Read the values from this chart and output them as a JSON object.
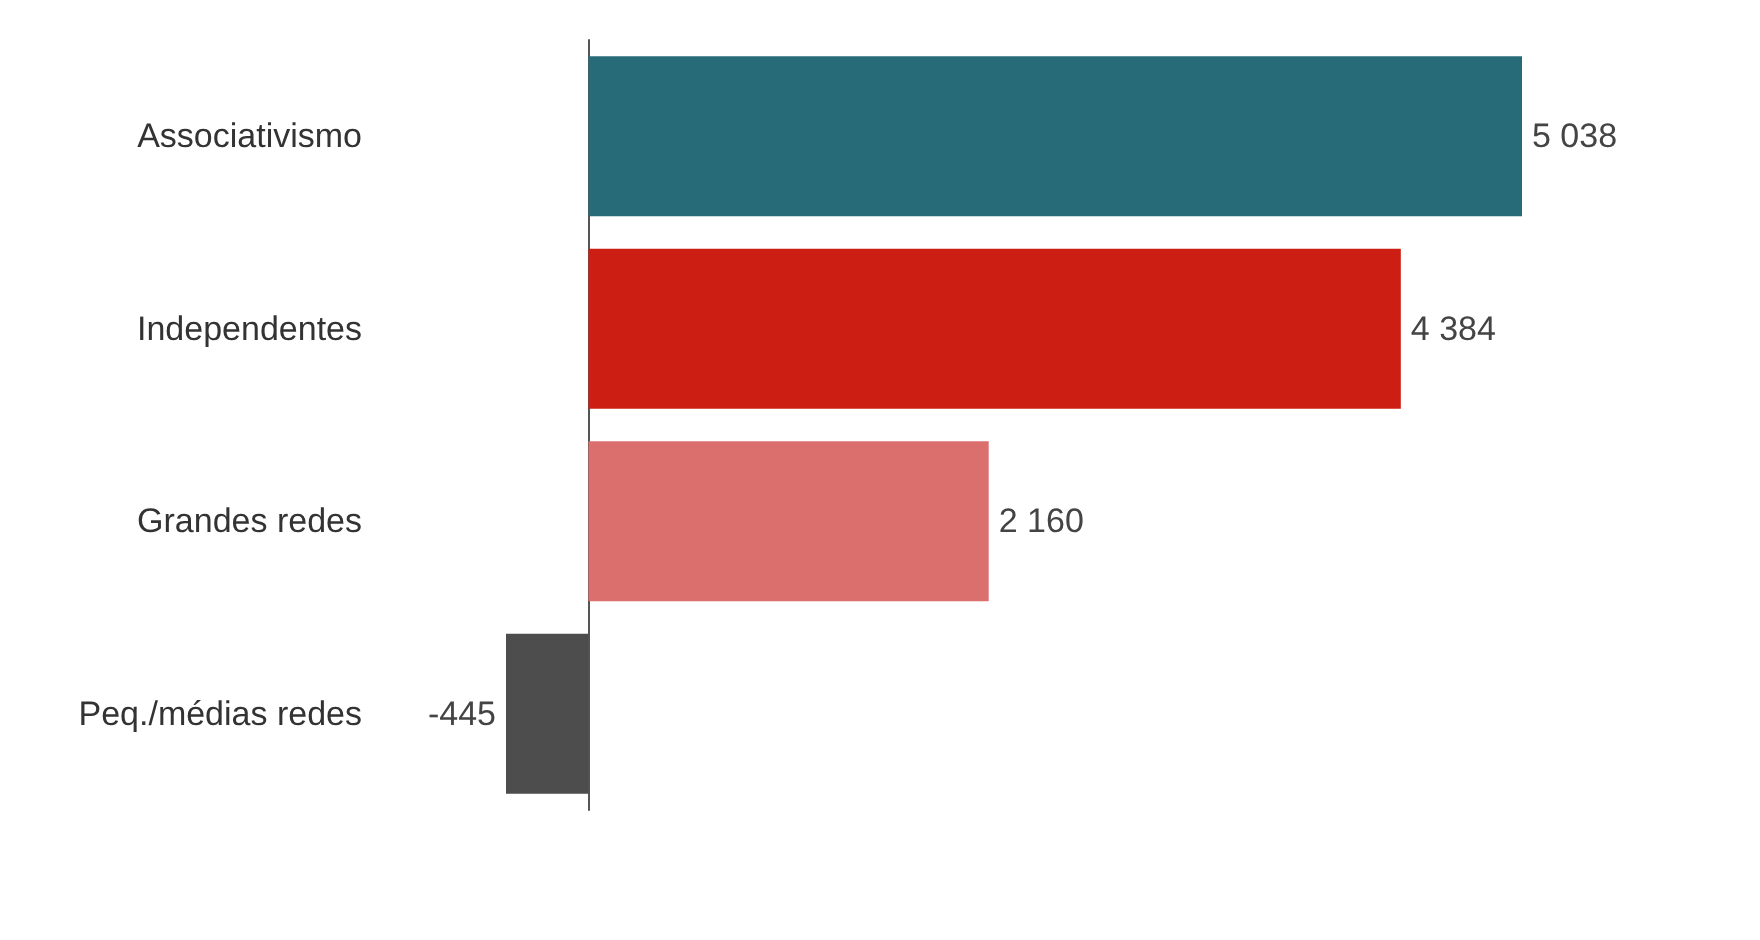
{
  "chart_data": {
    "type": "bar",
    "orientation": "horizontal",
    "categories": [
      "Associativismo",
      "Independentes",
      "Grandes redes",
      "Peq./médias redes"
    ],
    "values": [
      5038,
      4384,
      2160,
      -445
    ],
    "colors": [
      "#276b78",
      "#cc1e12",
      "#db6f6e",
      "#4d4d4d"
    ],
    "value_labels": [
      "5 038",
      "4 384",
      "2 160",
      "-445"
    ]
  }
}
